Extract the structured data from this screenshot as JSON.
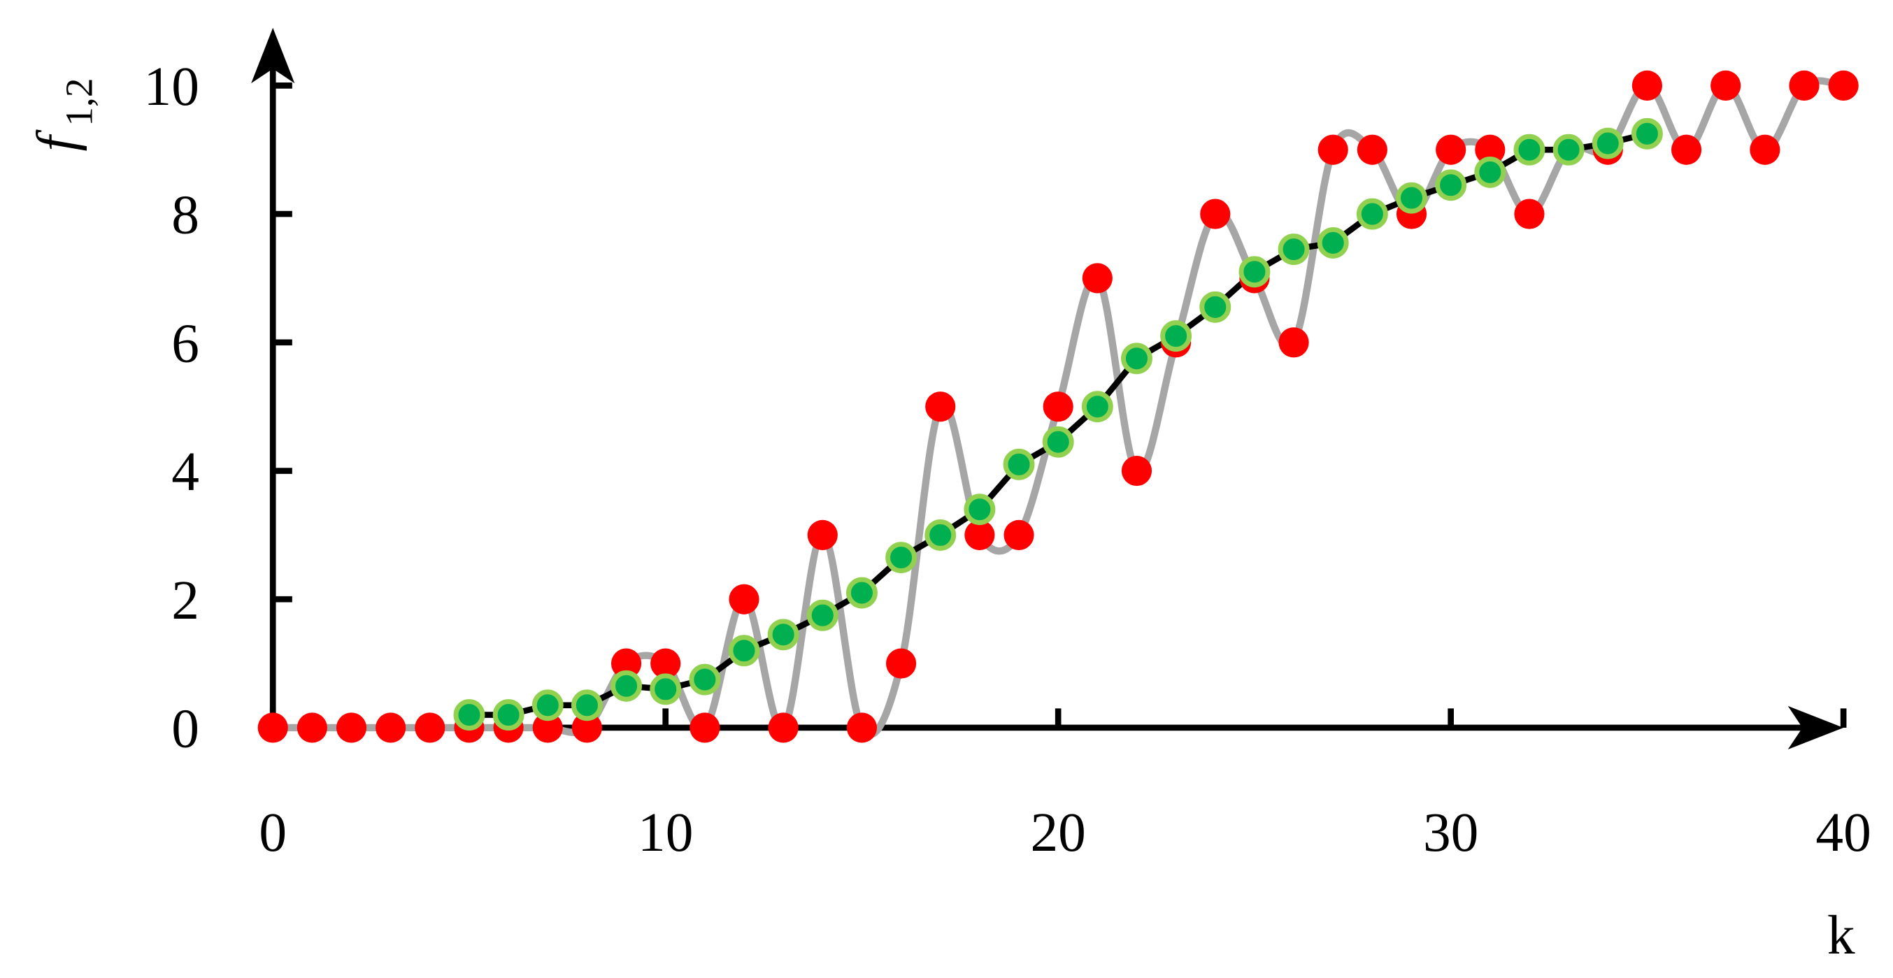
{
  "chart_data": {
    "type": "line",
    "xlabel": "k",
    "ylabel": {
      "main": "f",
      "sub": "1,2"
    },
    "xlim": [
      0,
      40
    ],
    "ylim": [
      0,
      10.9
    ],
    "xticks": [
      0,
      10,
      20,
      30,
      40
    ],
    "yticks": [
      0,
      2,
      4,
      6,
      8,
      10
    ],
    "grid": false,
    "series": [
      {
        "color": "#ff0000",
        "curve_color": "#a6a6a6",
        "smooth": true,
        "x": [
          0,
          1,
          2,
          3,
          4,
          5,
          6,
          7,
          8,
          9,
          10,
          11,
          12,
          13,
          14,
          15,
          16,
          17,
          18,
          19,
          20,
          21,
          22,
          23,
          24,
          25,
          26,
          27,
          28,
          29,
          30,
          31,
          32,
          33,
          34,
          35,
          36,
          37,
          38,
          39,
          40
        ],
        "values": [
          0,
          0,
          0,
          0,
          0,
          0,
          0,
          0,
          0,
          1,
          1,
          0,
          2,
          0,
          3,
          0,
          1,
          5,
          3,
          3,
          5,
          7,
          4,
          6,
          8,
          7,
          6,
          9,
          9,
          8,
          9,
          9,
          8,
          9,
          9,
          10,
          9,
          10,
          9,
          10,
          10
        ]
      },
      {
        "color": "#00b050",
        "edge_color": "#92d050",
        "line_color": "#000000",
        "smooth": false,
        "x": [
          5,
          6,
          7,
          8,
          9,
          10,
          11,
          12,
          13,
          14,
          15,
          16,
          17,
          18,
          19,
          20,
          21,
          22,
          23,
          24,
          25,
          26,
          27,
          28,
          29,
          30,
          31,
          32,
          33,
          34,
          35
        ],
        "values": [
          0.2,
          0.2,
          0.35,
          0.35,
          0.65,
          0.6,
          0.75,
          1.2,
          1.45,
          1.75,
          2.1,
          2.65,
          3.0,
          3.4,
          4.1,
          4.45,
          5.0,
          5.75,
          6.1,
          6.55,
          7.1,
          7.45,
          7.55,
          8.0,
          8.25,
          8.45,
          8.65,
          9.0,
          9.0,
          9.1,
          9.25
        ]
      }
    ]
  }
}
